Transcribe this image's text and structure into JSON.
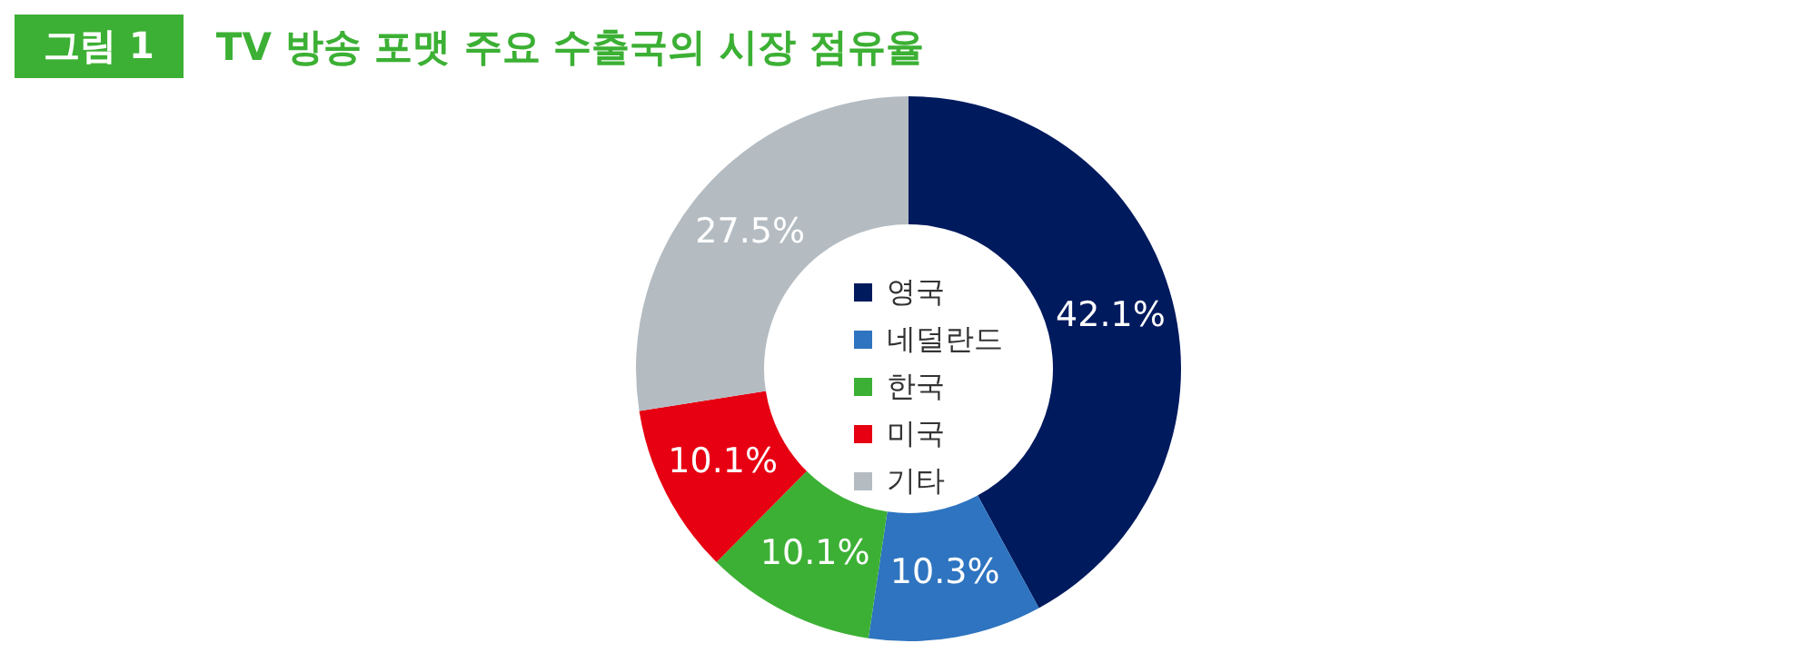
{
  "chart_data": {
    "type": "donut",
    "title": "TV 방송 포맷 주요 수출국의 시장 점유율",
    "annotations": [
      "그림 1"
    ],
    "categories": [
      "영국",
      "네덜란드",
      "한국",
      "미국",
      "기타"
    ],
    "values": [
      42.1,
      10.3,
      10.1,
      10.1,
      27.5
    ],
    "colors": [
      "#001a5e",
      "#2e74c0",
      "#3cb034",
      "#e60012",
      "#b4bcc2"
    ],
    "value_labels": [
      "42.1%",
      "10.3%",
      "10.1%",
      "10.1%",
      "27.5%"
    ],
    "legend": "center"
  }
}
